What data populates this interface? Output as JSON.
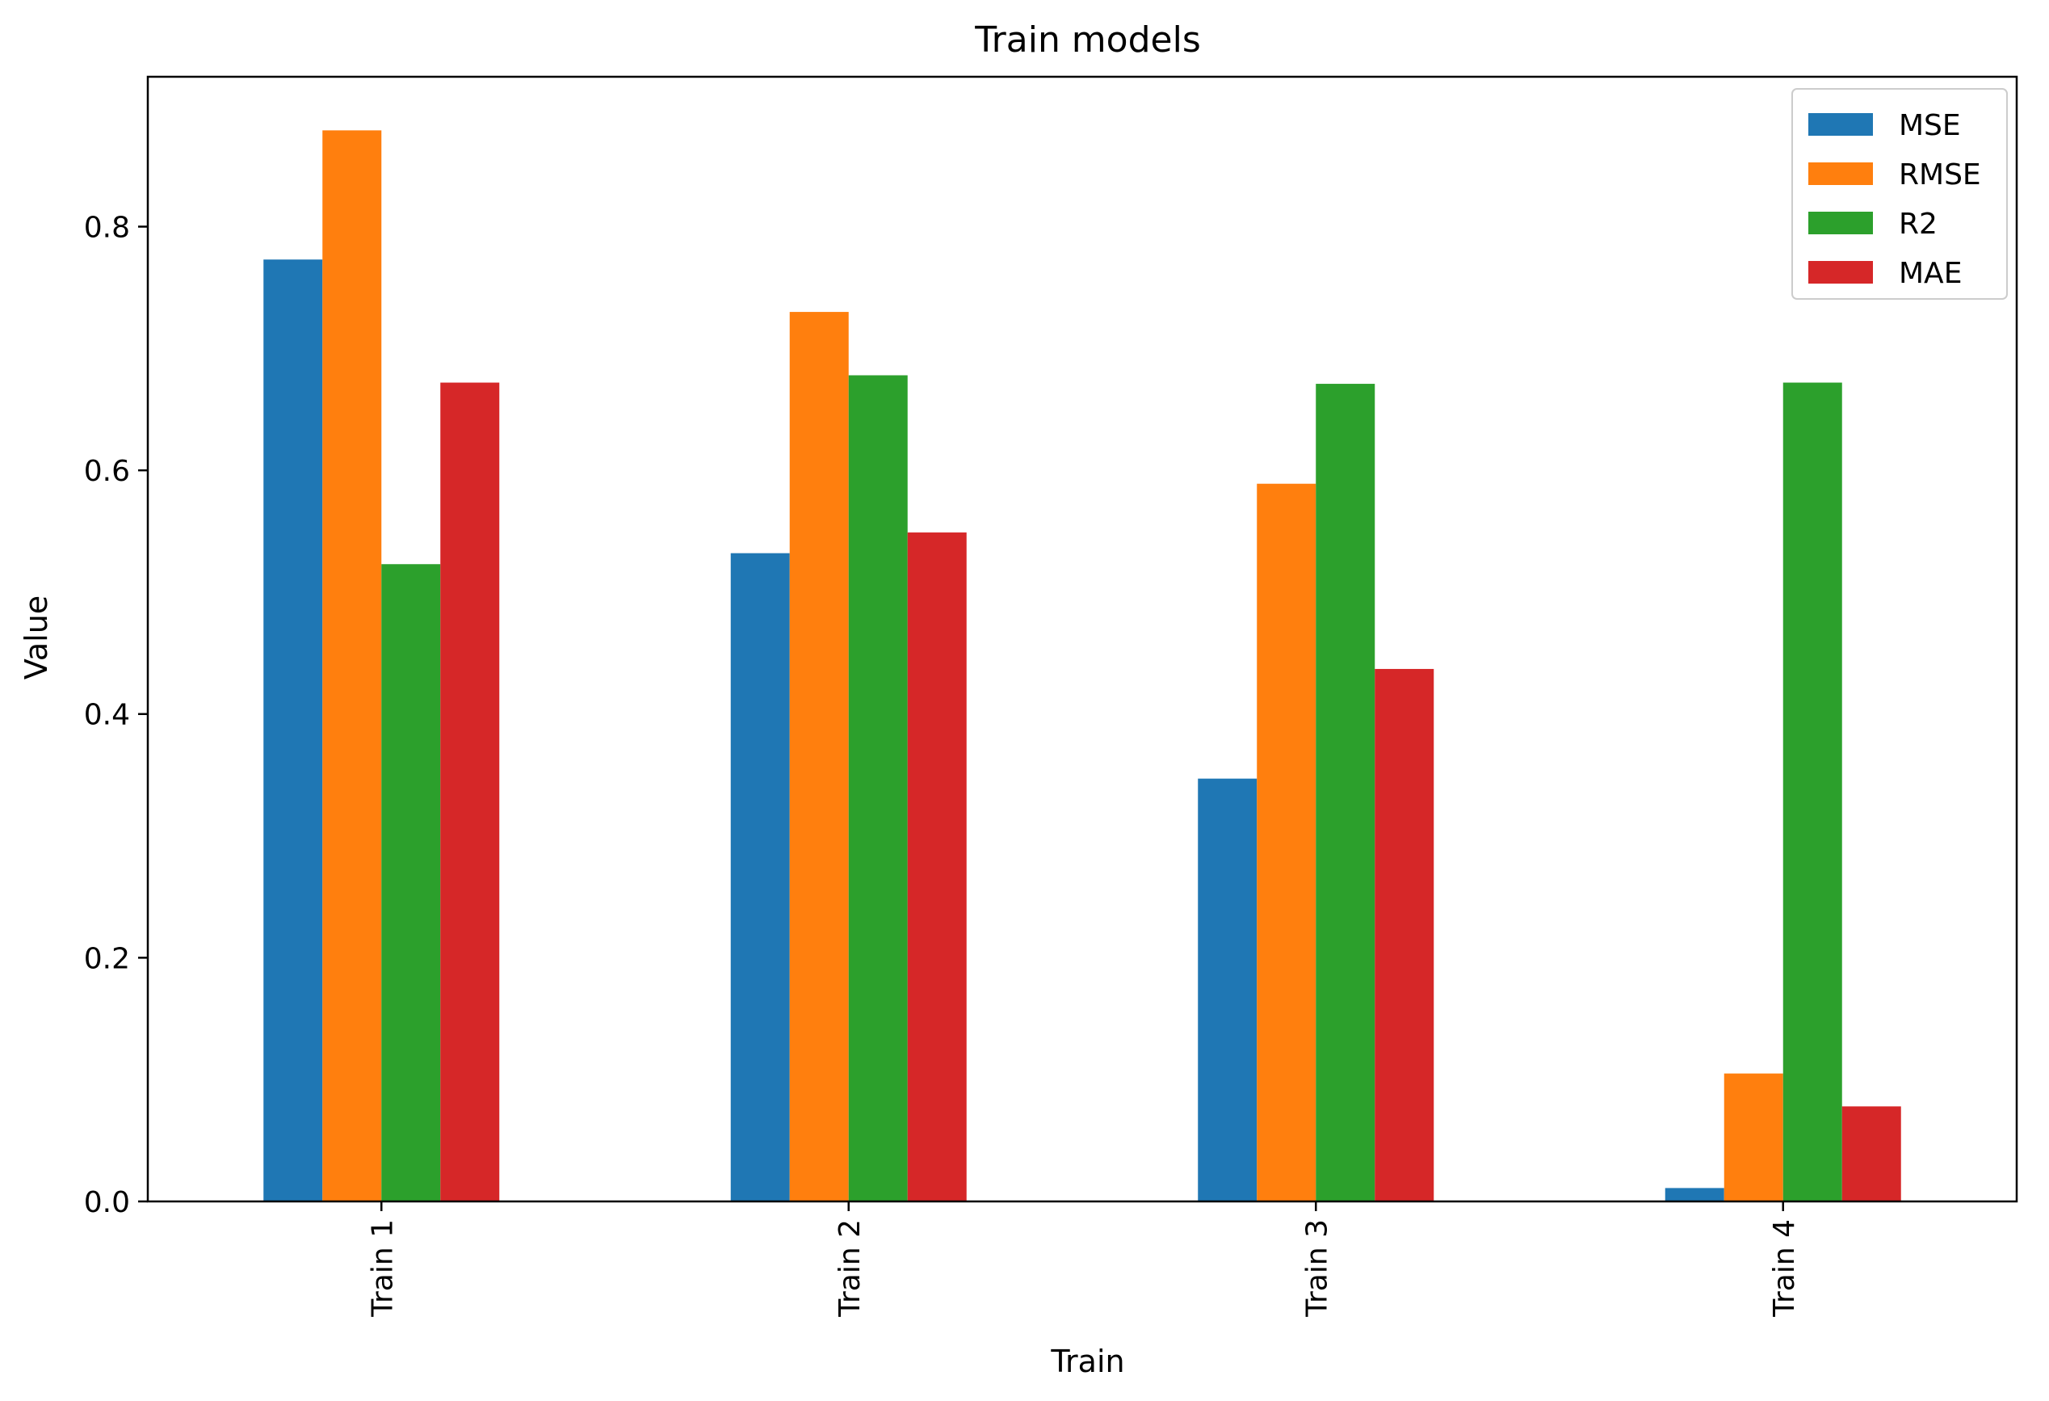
{
  "chart_data": {
    "type": "bar",
    "title": "Train models",
    "xlabel": "Train",
    "ylabel": "Value",
    "categories": [
      "Train 1",
      "Train 2",
      "Train 3",
      "Train 4"
    ],
    "series": [
      {
        "name": "MSE",
        "color": "#1f77b4",
        "values": [
          0.773,
          0.532,
          0.347,
          0.011
        ]
      },
      {
        "name": "RMSE",
        "color": "#ff7f0e",
        "values": [
          0.879,
          0.73,
          0.589,
          0.105
        ]
      },
      {
        "name": "R2",
        "color": "#2ca02c",
        "values": [
          0.523,
          0.678,
          0.671,
          0.672
        ]
      },
      {
        "name": "MAE",
        "color": "#d62728",
        "values": [
          0.672,
          0.549,
          0.437,
          0.078
        ]
      }
    ],
    "ylim": [
      0,
      0.923
    ],
    "yticks": [
      0.0,
      0.2,
      0.4,
      0.6,
      0.8
    ],
    "ytick_labels": [
      "0.0",
      "0.2",
      "0.4",
      "0.6",
      "0.8"
    ],
    "grid": false,
    "legend_position": "top-right",
    "xtick_rotation": "vertical"
  }
}
